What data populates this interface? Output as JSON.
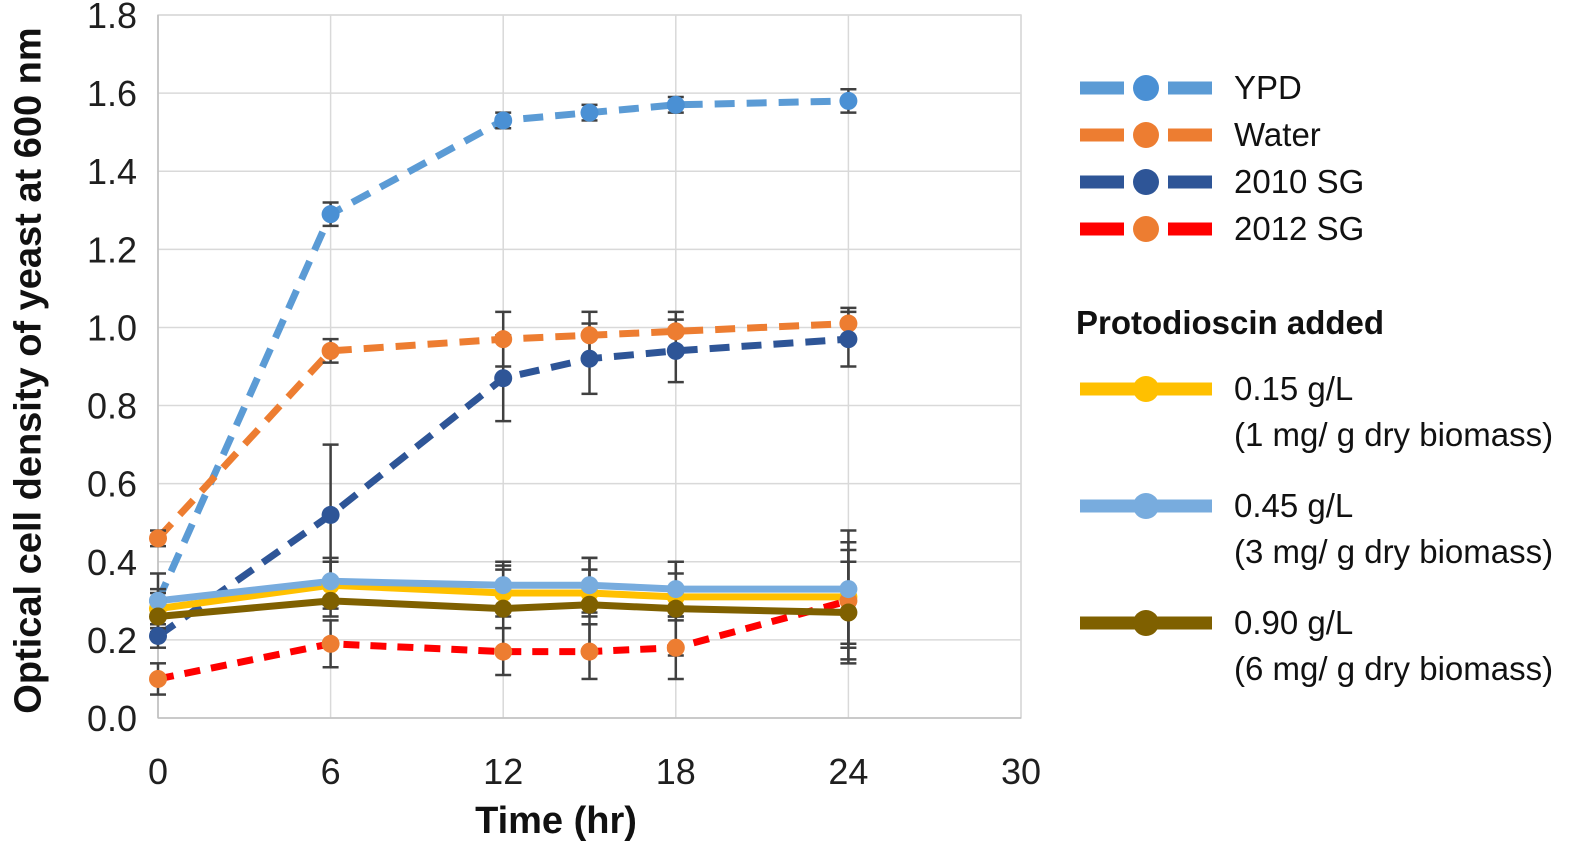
{
  "style": {
    "background": "#FFFFFF",
    "grid_color": "#D9D9D9",
    "axis_color": "#BFBFBF",
    "error_bar_color": "#404040",
    "tick_text_color": "#1F1F1F"
  },
  "chart_data": {
    "type": "line",
    "title": "",
    "xlabel": "Time (hr)",
    "ylabel": "Optical cell density of yeast at 600 nm",
    "xlim": [
      0,
      30
    ],
    "ylim": [
      0,
      1.8
    ],
    "xticks": [
      0,
      6,
      12,
      18,
      24,
      30
    ],
    "yticks": [
      0,
      0.2,
      0.4,
      0.6,
      0.8,
      1.0,
      1.2,
      1.4,
      1.6,
      1.8
    ],
    "grid": true,
    "legend_position": "right",
    "x": [
      0,
      6,
      12,
      15,
      18,
      24
    ],
    "series": [
      {
        "name": "YPD",
        "color": "#5B9BD5",
        "marker_color": "#4A90D4",
        "style": "dashed",
        "dash": [
          20,
          12
        ],
        "values": [
          0.3,
          1.29,
          1.53,
          1.55,
          1.57,
          1.58
        ],
        "errors": [
          0.02,
          0.03,
          0.02,
          0.02,
          0.02,
          0.03
        ]
      },
      {
        "name": "Water",
        "color": "#ED7D31",
        "marker_color": "#ED7D31",
        "style": "dashed",
        "dash": [
          20,
          12
        ],
        "values": [
          0.46,
          0.94,
          0.97,
          0.98,
          0.99,
          1.01
        ],
        "errors": [
          0.02,
          0.03,
          0.07,
          0.06,
          0.05,
          0.04
        ]
      },
      {
        "name": "2010 SG",
        "color": "#2E5597",
        "marker_color": "#2E5597",
        "style": "dashed",
        "dash": [
          20,
          12
        ],
        "values": [
          0.21,
          0.52,
          0.87,
          0.92,
          0.94,
          0.97
        ],
        "errors": [
          0.03,
          0.18,
          0.11,
          0.09,
          0.08,
          0.07
        ]
      },
      {
        "name": "2012 SG",
        "color": "#FF0000",
        "marker_color": "#ED7D31",
        "style": "dashed",
        "dash": [
          16,
          11
        ],
        "values": [
          0.1,
          0.19,
          0.17,
          0.17,
          0.18,
          0.3
        ],
        "errors": [
          0.04,
          0.06,
          0.06,
          0.07,
          0.08,
          0.15
        ]
      },
      {
        "name": "0.15 g/L",
        "sublabel": "(1 mg/ g dry biomass)",
        "color": "#FFC000",
        "marker_color": "#FFC000",
        "style": "solid",
        "dash": null,
        "values": [
          0.28,
          0.34,
          0.32,
          0.32,
          0.31,
          0.31
        ],
        "errors": [
          0.05,
          0.06,
          0.06,
          0.06,
          0.06,
          0.12
        ]
      },
      {
        "name": "0.45 g/L",
        "sublabel": "(3 mg/ g dry biomass)",
        "color": "#78ACDE",
        "marker_color": "#78ACDE",
        "style": "solid",
        "dash": null,
        "values": [
          0.3,
          0.35,
          0.34,
          0.34,
          0.33,
          0.33
        ],
        "errors": [
          0.07,
          0.06,
          0.06,
          0.07,
          0.07,
          0.15
        ]
      },
      {
        "name": "0.90 g/L",
        "sublabel": "(6 mg/ g dry biomass)",
        "color": "#7F6000",
        "marker_color": "#7F6000",
        "style": "solid",
        "dash": null,
        "values": [
          0.26,
          0.3,
          0.28,
          0.29,
          0.28,
          0.27
        ],
        "errors": [
          0.04,
          0.04,
          0.11,
          0.12,
          0.12,
          0.13
        ]
      }
    ],
    "legend_groups": [
      {
        "header": "",
        "series_indexes": [
          0,
          1,
          2,
          3
        ]
      },
      {
        "header": "Protodioscin added",
        "series_indexes": [
          4,
          5,
          6
        ]
      }
    ]
  }
}
